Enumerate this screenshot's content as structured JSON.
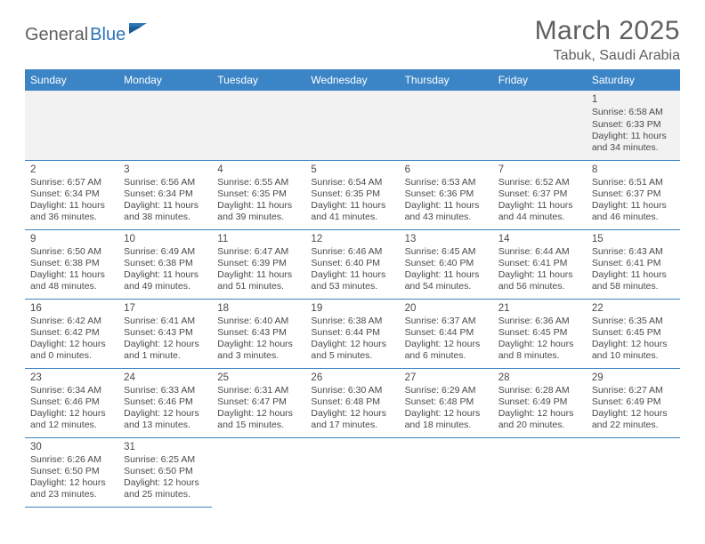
{
  "logo": {
    "text1": "General",
    "text2": "Blue"
  },
  "title": {
    "month": "March 2025",
    "location": "Tabuk, Saudi Arabia"
  },
  "colors": {
    "header_bg": "#3b85c6",
    "header_text": "#ffffff",
    "border": "#3b85c6",
    "empty_bg": "#f2f2f2",
    "body_text": "#4a4a4a",
    "logo_gray": "#5f5f5f",
    "logo_blue": "#2b74b8"
  },
  "weekdays": [
    "Sunday",
    "Monday",
    "Tuesday",
    "Wednesday",
    "Thursday",
    "Friday",
    "Saturday"
  ],
  "weeks": [
    [
      null,
      null,
      null,
      null,
      null,
      null,
      {
        "d": "1",
        "sr": "Sunrise: 6:58 AM",
        "ss": "Sunset: 6:33 PM",
        "dl": "Daylight: 11 hours and 34 minutes."
      }
    ],
    [
      {
        "d": "2",
        "sr": "Sunrise: 6:57 AM",
        "ss": "Sunset: 6:34 PM",
        "dl": "Daylight: 11 hours and 36 minutes."
      },
      {
        "d": "3",
        "sr": "Sunrise: 6:56 AM",
        "ss": "Sunset: 6:34 PM",
        "dl": "Daylight: 11 hours and 38 minutes."
      },
      {
        "d": "4",
        "sr": "Sunrise: 6:55 AM",
        "ss": "Sunset: 6:35 PM",
        "dl": "Daylight: 11 hours and 39 minutes."
      },
      {
        "d": "5",
        "sr": "Sunrise: 6:54 AM",
        "ss": "Sunset: 6:35 PM",
        "dl": "Daylight: 11 hours and 41 minutes."
      },
      {
        "d": "6",
        "sr": "Sunrise: 6:53 AM",
        "ss": "Sunset: 6:36 PM",
        "dl": "Daylight: 11 hours and 43 minutes."
      },
      {
        "d": "7",
        "sr": "Sunrise: 6:52 AM",
        "ss": "Sunset: 6:37 PM",
        "dl": "Daylight: 11 hours and 44 minutes."
      },
      {
        "d": "8",
        "sr": "Sunrise: 6:51 AM",
        "ss": "Sunset: 6:37 PM",
        "dl": "Daylight: 11 hours and 46 minutes."
      }
    ],
    [
      {
        "d": "9",
        "sr": "Sunrise: 6:50 AM",
        "ss": "Sunset: 6:38 PM",
        "dl": "Daylight: 11 hours and 48 minutes."
      },
      {
        "d": "10",
        "sr": "Sunrise: 6:49 AM",
        "ss": "Sunset: 6:38 PM",
        "dl": "Daylight: 11 hours and 49 minutes."
      },
      {
        "d": "11",
        "sr": "Sunrise: 6:47 AM",
        "ss": "Sunset: 6:39 PM",
        "dl": "Daylight: 11 hours and 51 minutes."
      },
      {
        "d": "12",
        "sr": "Sunrise: 6:46 AM",
        "ss": "Sunset: 6:40 PM",
        "dl": "Daylight: 11 hours and 53 minutes."
      },
      {
        "d": "13",
        "sr": "Sunrise: 6:45 AM",
        "ss": "Sunset: 6:40 PM",
        "dl": "Daylight: 11 hours and 54 minutes."
      },
      {
        "d": "14",
        "sr": "Sunrise: 6:44 AM",
        "ss": "Sunset: 6:41 PM",
        "dl": "Daylight: 11 hours and 56 minutes."
      },
      {
        "d": "15",
        "sr": "Sunrise: 6:43 AM",
        "ss": "Sunset: 6:41 PM",
        "dl": "Daylight: 11 hours and 58 minutes."
      }
    ],
    [
      {
        "d": "16",
        "sr": "Sunrise: 6:42 AM",
        "ss": "Sunset: 6:42 PM",
        "dl": "Daylight: 12 hours and 0 minutes."
      },
      {
        "d": "17",
        "sr": "Sunrise: 6:41 AM",
        "ss": "Sunset: 6:43 PM",
        "dl": "Daylight: 12 hours and 1 minute."
      },
      {
        "d": "18",
        "sr": "Sunrise: 6:40 AM",
        "ss": "Sunset: 6:43 PM",
        "dl": "Daylight: 12 hours and 3 minutes."
      },
      {
        "d": "19",
        "sr": "Sunrise: 6:38 AM",
        "ss": "Sunset: 6:44 PM",
        "dl": "Daylight: 12 hours and 5 minutes."
      },
      {
        "d": "20",
        "sr": "Sunrise: 6:37 AM",
        "ss": "Sunset: 6:44 PM",
        "dl": "Daylight: 12 hours and 6 minutes."
      },
      {
        "d": "21",
        "sr": "Sunrise: 6:36 AM",
        "ss": "Sunset: 6:45 PM",
        "dl": "Daylight: 12 hours and 8 minutes."
      },
      {
        "d": "22",
        "sr": "Sunrise: 6:35 AM",
        "ss": "Sunset: 6:45 PM",
        "dl": "Daylight: 12 hours and 10 minutes."
      }
    ],
    [
      {
        "d": "23",
        "sr": "Sunrise: 6:34 AM",
        "ss": "Sunset: 6:46 PM",
        "dl": "Daylight: 12 hours and 12 minutes."
      },
      {
        "d": "24",
        "sr": "Sunrise: 6:33 AM",
        "ss": "Sunset: 6:46 PM",
        "dl": "Daylight: 12 hours and 13 minutes."
      },
      {
        "d": "25",
        "sr": "Sunrise: 6:31 AM",
        "ss": "Sunset: 6:47 PM",
        "dl": "Daylight: 12 hours and 15 minutes."
      },
      {
        "d": "26",
        "sr": "Sunrise: 6:30 AM",
        "ss": "Sunset: 6:48 PM",
        "dl": "Daylight: 12 hours and 17 minutes."
      },
      {
        "d": "27",
        "sr": "Sunrise: 6:29 AM",
        "ss": "Sunset: 6:48 PM",
        "dl": "Daylight: 12 hours and 18 minutes."
      },
      {
        "d": "28",
        "sr": "Sunrise: 6:28 AM",
        "ss": "Sunset: 6:49 PM",
        "dl": "Daylight: 12 hours and 20 minutes."
      },
      {
        "d": "29",
        "sr": "Sunrise: 6:27 AM",
        "ss": "Sunset: 6:49 PM",
        "dl": "Daylight: 12 hours and 22 minutes."
      }
    ],
    [
      {
        "d": "30",
        "sr": "Sunrise: 6:26 AM",
        "ss": "Sunset: 6:50 PM",
        "dl": "Daylight: 12 hours and 23 minutes."
      },
      {
        "d": "31",
        "sr": "Sunrise: 6:25 AM",
        "ss": "Sunset: 6:50 PM",
        "dl": "Daylight: 12 hours and 25 minutes."
      },
      null,
      null,
      null,
      null,
      null
    ]
  ]
}
